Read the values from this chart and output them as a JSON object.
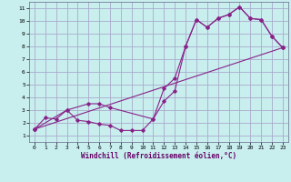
{
  "xlabel": "Windchill (Refroidissement éolien,°C)",
  "bg_color": "#c8eeee",
  "grid_color": "#aaaacc",
  "line_color": "#882288",
  "xlim": [
    -0.5,
    23.5
  ],
  "ylim": [
    0.5,
    11.5
  ],
  "xticks": [
    0,
    1,
    2,
    3,
    4,
    5,
    6,
    7,
    8,
    9,
    10,
    11,
    12,
    13,
    14,
    15,
    16,
    17,
    18,
    19,
    20,
    21,
    22,
    23
  ],
  "yticks": [
    1,
    2,
    3,
    4,
    5,
    6,
    7,
    8,
    9,
    10,
    11
  ],
  "line1_x": [
    0,
    1,
    2,
    3,
    4,
    5,
    6,
    7,
    8,
    9,
    10,
    11,
    12,
    13,
    14,
    15,
    16,
    17,
    18,
    19,
    20,
    21,
    22,
    23
  ],
  "line1_y": [
    1.5,
    2.4,
    2.3,
    3.0,
    2.2,
    2.1,
    1.9,
    1.8,
    1.4,
    1.4,
    1.4,
    2.3,
    3.7,
    4.5,
    8.0,
    10.1,
    9.5,
    10.2,
    10.5,
    11.1,
    10.2,
    10.1,
    8.8,
    7.9
  ],
  "line2_x": [
    0,
    3,
    5,
    6,
    7,
    11,
    12,
    13,
    14,
    15,
    16,
    17,
    18,
    19,
    20,
    21,
    22,
    23
  ],
  "line2_y": [
    1.5,
    3.0,
    3.5,
    3.5,
    3.2,
    2.3,
    4.7,
    5.5,
    8.0,
    10.1,
    9.5,
    10.2,
    10.5,
    11.1,
    10.2,
    10.1,
    8.8,
    7.9
  ],
  "line3_x": [
    0,
    23
  ],
  "line3_y": [
    1.5,
    7.9
  ]
}
